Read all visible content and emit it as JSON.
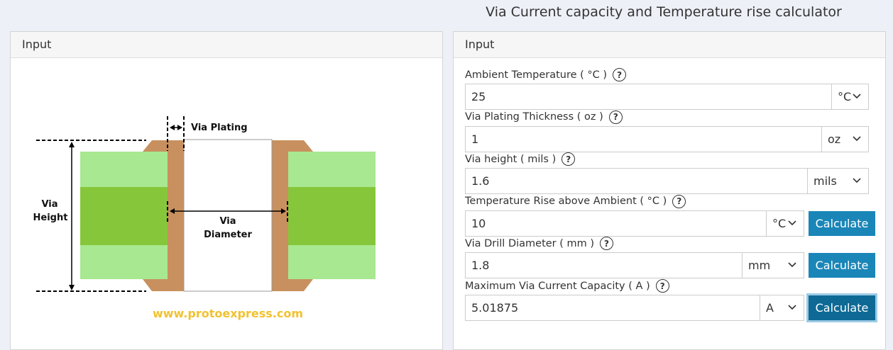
{
  "header": {
    "title": "Via Current capacity and Temperature rise calculator"
  },
  "help_icon": "?",
  "left_panel": {
    "heading": "Input",
    "diagram": {
      "plating_label": "Via Plating",
      "height_label": [
        "Via",
        "Height"
      ],
      "diameter_label": [
        "Via",
        "Diameter"
      ],
      "website": "www.protoexpress.com"
    }
  },
  "right_panel": {
    "heading": "Input",
    "fields": [
      {
        "label": "Ambient Temperature ( °C )",
        "value": "25",
        "unit": "°C"
      },
      {
        "label": "Via Plating Thickness ( oz )",
        "value": "1",
        "unit": "oz"
      },
      {
        "label": "Via height ( mils )",
        "value": "1.6",
        "unit": "mils"
      },
      {
        "label": "Temperature Rise above Ambient ( °C )",
        "value": "10",
        "unit": "°C",
        "button": "Calculate"
      },
      {
        "label": "Via Drill Diameter ( mm )",
        "value": "1.8",
        "unit": "mm",
        "button": "Calculate"
      },
      {
        "label": "Maximum Via Current Capacity ( A )",
        "value": "5.01875",
        "unit": "A",
        "button": "Calculate"
      }
    ]
  }
}
